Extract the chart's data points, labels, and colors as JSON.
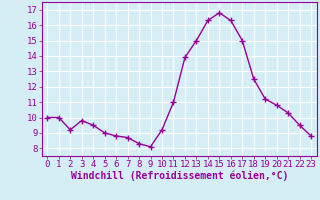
{
  "x": [
    0,
    1,
    2,
    3,
    4,
    5,
    6,
    7,
    8,
    9,
    10,
    11,
    12,
    13,
    14,
    15,
    16,
    17,
    18,
    19,
    20,
    21,
    22,
    23
  ],
  "y": [
    10.0,
    10.0,
    9.2,
    9.8,
    9.5,
    9.0,
    8.8,
    8.7,
    8.3,
    8.1,
    9.2,
    11.0,
    13.9,
    15.0,
    16.3,
    16.8,
    16.3,
    15.0,
    12.5,
    11.2,
    10.8,
    10.3,
    9.5,
    8.8
  ],
  "line_color": "#990099",
  "marker": "+",
  "marker_size": 4,
  "linewidth": 1.0,
  "xlabel": "Windchill (Refroidissement éolien,°C)",
  "xlim": [
    -0.5,
    23.5
  ],
  "ylim": [
    7.5,
    17.5
  ],
  "yticks": [
    8,
    9,
    10,
    11,
    12,
    13,
    14,
    15,
    16,
    17
  ],
  "xticks": [
    0,
    1,
    2,
    3,
    4,
    5,
    6,
    7,
    8,
    9,
    10,
    11,
    12,
    13,
    14,
    15,
    16,
    17,
    18,
    19,
    20,
    21,
    22,
    23
  ],
  "background_color": "#d5eef5",
  "grid_color": "#ffffff",
  "line_border_color": "#800080",
  "tick_fontsize": 6.5,
  "xlabel_fontsize": 7
}
